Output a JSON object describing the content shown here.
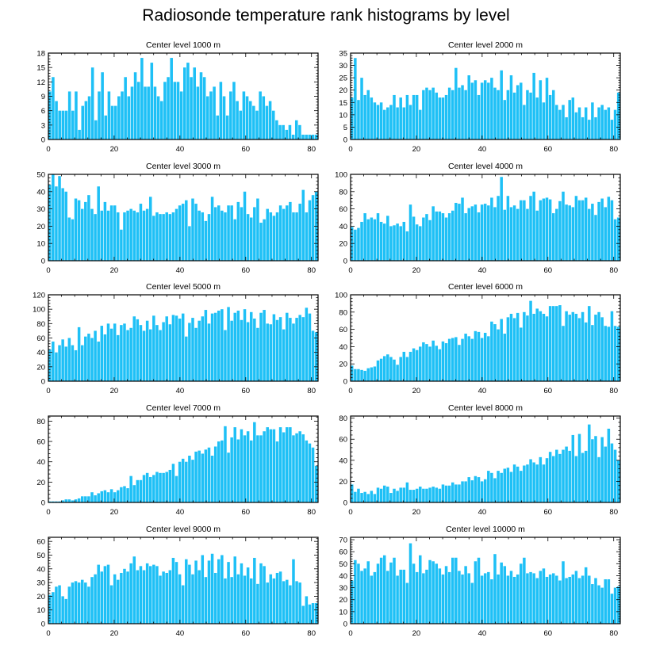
{
  "title": "Radiosonde temperature rank histograms by level",
  "colors": {
    "bar": "#1ec0f6",
    "bar_edge": "#ffffff",
    "axis": "#000000"
  },
  "chart_data": [
    {
      "type": "bar",
      "title": "Center level 1000 m",
      "ylim": [
        0,
        18
      ],
      "yticks": [
        0,
        3,
        6,
        9,
        12,
        15,
        18
      ],
      "xlim": [
        0,
        82
      ],
      "xticks": [
        0,
        20,
        40,
        60,
        80
      ],
      "values": [
        10,
        13,
        8,
        6,
        6,
        6,
        10,
        6,
        10,
        2,
        7,
        8,
        9,
        15,
        4,
        10,
        14,
        5,
        10,
        7,
        7,
        9,
        10,
        13,
        9,
        11,
        14,
        12,
        17,
        11,
        11,
        16,
        11,
        9,
        8,
        12,
        13,
        17,
        12,
        12,
        10,
        15,
        16,
        13,
        15,
        11,
        14,
        13,
        9,
        10,
        11,
        5,
        12,
        9,
        5,
        10,
        12,
        8,
        6,
        10,
        9,
        8,
        7,
        6,
        10,
        9,
        7,
        8,
        6,
        4,
        3,
        3,
        2,
        3,
        1,
        4,
        3,
        1,
        1,
        1,
        1,
        1
      ]
    },
    {
      "type": "bar",
      "title": "Center level 2000 m",
      "ylim": [
        0,
        35
      ],
      "yticks": [
        0,
        5,
        10,
        15,
        20,
        25,
        30,
        35
      ],
      "xlim": [
        0,
        82
      ],
      "xticks": [
        0,
        20,
        40,
        60,
        80
      ],
      "values": [
        17,
        33,
        16,
        25,
        18,
        20,
        17,
        15,
        14,
        15,
        12,
        13,
        14,
        18,
        13,
        17,
        13,
        18,
        14,
        18,
        18,
        12,
        20,
        21,
        20,
        21,
        19,
        17,
        17,
        18,
        21,
        20,
        29,
        21,
        22,
        20,
        26,
        23,
        24,
        18,
        23,
        24,
        23,
        25,
        21,
        20,
        28,
        16,
        20,
        26,
        19,
        22,
        23,
        14,
        20,
        19,
        27,
        17,
        24,
        15,
        25,
        18,
        20,
        14,
        12,
        14,
        9,
        16,
        17,
        11,
        13,
        9,
        13,
        8,
        15,
        9,
        13,
        14,
        12,
        13,
        8,
        12,
        19
      ]
    },
    {
      "type": "bar",
      "title": "Center level 3000 m",
      "ylim": [
        0,
        50
      ],
      "yticks": [
        0,
        10,
        20,
        30,
        40,
        50
      ],
      "xlim": [
        0,
        82
      ],
      "xticks": [
        0,
        20,
        40,
        60,
        80
      ],
      "values": [
        44,
        50,
        43,
        49,
        42,
        40,
        25,
        24,
        36,
        35,
        30,
        34,
        38,
        30,
        27,
        43,
        29,
        34,
        29,
        32,
        32,
        28,
        18,
        28,
        29,
        30,
        29,
        28,
        33,
        29,
        30,
        37,
        26,
        28,
        27,
        27,
        28,
        27,
        28,
        30,
        32,
        33,
        35,
        20,
        36,
        33,
        29,
        28,
        23,
        27,
        37,
        31,
        32,
        29,
        28,
        32,
        32,
        24,
        34,
        31,
        40,
        27,
        25,
        31,
        36,
        22,
        24,
        30,
        28,
        26,
        28,
        32,
        30,
        32,
        34,
        28,
        28,
        33,
        41,
        28,
        35,
        38,
        40
      ]
    },
    {
      "type": "bar",
      "title": "Center level 4000 m",
      "ylim": [
        0,
        100
      ],
      "yticks": [
        0,
        20,
        40,
        60,
        80,
        100
      ],
      "xlim": [
        0,
        82
      ],
      "xticks": [
        0,
        20,
        40,
        60,
        80
      ],
      "values": [
        39,
        36,
        38,
        45,
        55,
        48,
        50,
        48,
        55,
        45,
        43,
        52,
        40,
        41,
        43,
        40,
        45,
        34,
        65,
        51,
        42,
        40,
        50,
        54,
        47,
        63,
        57,
        57,
        55,
        50,
        55,
        58,
        67,
        66,
        73,
        55,
        61,
        63,
        65,
        56,
        65,
        66,
        64,
        73,
        62,
        75,
        97,
        59,
        75,
        62,
        64,
        60,
        70,
        70,
        60,
        75,
        80,
        58,
        70,
        72,
        73,
        71,
        55,
        60,
        69,
        80,
        65,
        64,
        62,
        75,
        70,
        70,
        73,
        60,
        66,
        53,
        68,
        72,
        62,
        74,
        70,
        48,
        50
      ]
    },
    {
      "type": "bar",
      "title": "Center level 5000 m",
      "ylim": [
        0,
        120
      ],
      "yticks": [
        0,
        20,
        40,
        60,
        80,
        100,
        120
      ],
      "xlim": [
        0,
        82
      ],
      "xticks": [
        0,
        20,
        40,
        60,
        80
      ],
      "values": [
        44,
        55,
        40,
        50,
        58,
        48,
        60,
        50,
        43,
        75,
        50,
        62,
        66,
        60,
        70,
        55,
        77,
        65,
        80,
        73,
        80,
        64,
        78,
        80,
        71,
        74,
        90,
        86,
        78,
        70,
        84,
        72,
        91,
        78,
        71,
        82,
        90,
        79,
        92,
        91,
        87,
        94,
        62,
        81,
        88,
        74,
        84,
        90,
        99,
        80,
        94,
        95,
        98,
        100,
        71,
        103,
        84,
        95,
        98,
        85,
        100,
        82,
        96,
        87,
        74,
        95,
        99,
        80,
        79,
        93,
        85,
        89,
        72,
        95,
        88,
        80,
        88,
        92,
        89,
        102,
        94,
        70,
        68
      ]
    },
    {
      "type": "bar",
      "title": "Center level 6000 m",
      "ylim": [
        0,
        100
      ],
      "yticks": [
        0,
        20,
        40,
        60,
        80,
        100
      ],
      "xlim": [
        0,
        82
      ],
      "xticks": [
        0,
        20,
        40,
        60,
        80
      ],
      "values": [
        18,
        14,
        14,
        13,
        12,
        15,
        16,
        17,
        24,
        26,
        29,
        31,
        28,
        25,
        19,
        28,
        34,
        28,
        34,
        38,
        36,
        40,
        45,
        43,
        40,
        47,
        41,
        37,
        46,
        44,
        49,
        50,
        51,
        42,
        49,
        55,
        52,
        49,
        58,
        57,
        50,
        56,
        52,
        69,
        66,
        60,
        72,
        55,
        74,
        78,
        73,
        79,
        62,
        80,
        76,
        93,
        78,
        84,
        81,
        78,
        75,
        87,
        87,
        87,
        88,
        64,
        81,
        77,
        80,
        78,
        73,
        80,
        68,
        87,
        65,
        77,
        80,
        74,
        64,
        63,
        81,
        64,
        63
      ]
    },
    {
      "type": "bar",
      "title": "Center level 7000 m",
      "ylim": [
        0,
        85
      ],
      "yticks": [
        0,
        20,
        40,
        60,
        80
      ],
      "xlim": [
        0,
        82
      ],
      "xticks": [
        0,
        20,
        40,
        60,
        80
      ],
      "values": [
        1,
        1,
        1,
        1,
        2,
        3,
        3,
        2,
        3,
        4,
        6,
        6,
        6,
        10,
        7,
        9,
        11,
        12,
        10,
        13,
        10,
        12,
        15,
        16,
        14,
        26,
        17,
        22,
        22,
        27,
        29,
        25,
        27,
        30,
        29,
        29,
        30,
        32,
        38,
        26,
        40,
        43,
        40,
        46,
        42,
        50,
        51,
        48,
        52,
        54,
        46,
        55,
        60,
        61,
        75,
        49,
        64,
        74,
        62,
        72,
        66,
        70,
        61,
        79,
        66,
        66,
        70,
        74,
        72,
        72,
        60,
        74,
        69,
        74,
        74,
        66,
        68,
        70,
        67,
        61,
        58,
        54,
        36
      ]
    },
    {
      "type": "bar",
      "title": "Center level 8000 m",
      "ylim": [
        0,
        82
      ],
      "yticks": [
        0,
        20,
        40,
        60,
        80
      ],
      "xlim": [
        0,
        82
      ],
      "xticks": [
        0,
        20,
        40,
        60,
        80
      ],
      "values": [
        17,
        10,
        13,
        9,
        10,
        8,
        11,
        8,
        14,
        13,
        16,
        15,
        9,
        13,
        11,
        14,
        14,
        19,
        12,
        12,
        13,
        15,
        13,
        13,
        14,
        15,
        14,
        13,
        17,
        16,
        16,
        19,
        17,
        17,
        20,
        20,
        24,
        21,
        25,
        24,
        20,
        22,
        30,
        28,
        23,
        30,
        28,
        32,
        33,
        29,
        36,
        34,
        30,
        35,
        36,
        41,
        38,
        36,
        43,
        36,
        42,
        48,
        44,
        50,
        46,
        50,
        53,
        49,
        64,
        44,
        65,
        47,
        49,
        74,
        60,
        63,
        43,
        62,
        53,
        70,
        56,
        50,
        40
      ]
    },
    {
      "type": "bar",
      "title": "Center level 9000 m",
      "ylim": [
        0,
        63
      ],
      "yticks": [
        0,
        10,
        20,
        30,
        40,
        50,
        60
      ],
      "xlim": [
        0,
        82
      ],
      "xticks": [
        0,
        20,
        40,
        60,
        80
      ],
      "values": [
        21,
        23,
        27,
        28,
        20,
        18,
        27,
        30,
        31,
        30,
        32,
        30,
        27,
        34,
        36,
        43,
        38,
        42,
        43,
        28,
        36,
        32,
        37,
        40,
        38,
        44,
        49,
        39,
        42,
        39,
        44,
        42,
        43,
        42,
        35,
        38,
        37,
        39,
        48,
        45,
        36,
        28,
        47,
        43,
        36,
        46,
        39,
        50,
        34,
        46,
        51,
        37,
        47,
        50,
        33,
        45,
        34,
        49,
        36,
        44,
        35,
        41,
        33,
        48,
        29,
        44,
        42,
        30,
        36,
        33,
        37,
        38,
        31,
        32,
        28,
        47,
        31,
        30,
        13,
        20,
        14,
        15,
        15
      ]
    },
    {
      "type": "bar",
      "title": "Center level 10000 m",
      "ylim": [
        0,
        72
      ],
      "yticks": [
        0,
        10,
        20,
        30,
        40,
        50,
        60,
        70
      ],
      "xlim": [
        0,
        82
      ],
      "xticks": [
        0,
        20,
        40,
        60,
        80
      ],
      "values": [
        36,
        53,
        50,
        44,
        46,
        52,
        40,
        43,
        50,
        55,
        57,
        44,
        51,
        55,
        40,
        45,
        45,
        34,
        67,
        50,
        43,
        57,
        42,
        45,
        53,
        52,
        50,
        46,
        41,
        48,
        43,
        55,
        55,
        44,
        41,
        48,
        42,
        34,
        52,
        55,
        40,
        42,
        43,
        37,
        58,
        41,
        51,
        48,
        40,
        44,
        39,
        41,
        50,
        55,
        42,
        43,
        42,
        38,
        44,
        46,
        39,
        41,
        42,
        40,
        36,
        52,
        38,
        39,
        41,
        44,
        38,
        40,
        47,
        40,
        33,
        38,
        32,
        30,
        37,
        37,
        25,
        30,
        31
      ]
    }
  ]
}
